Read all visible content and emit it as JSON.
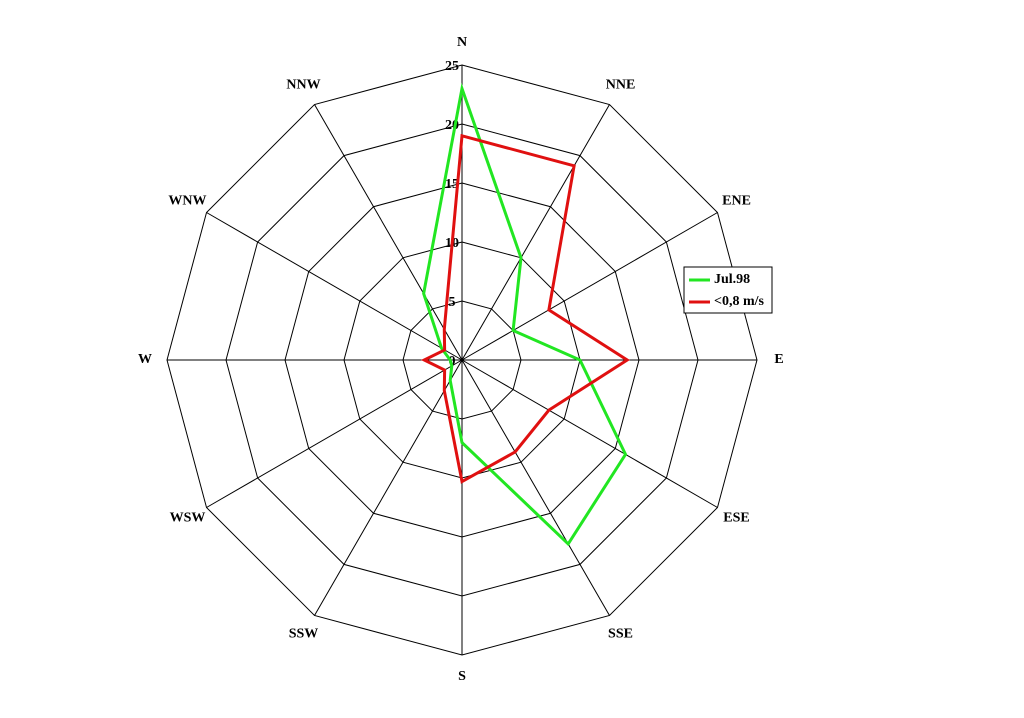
{
  "chart_data": {
    "type": "radar",
    "categories": [
      "N",
      "NNE",
      "ENE",
      "E",
      "ESE",
      "SSE",
      "S",
      "SSW",
      "WSW",
      "W",
      "WNW",
      "NNW"
    ],
    "series": [
      {
        "name": "Jul.98",
        "color": "#22e622",
        "values": [
          23,
          10,
          5,
          10,
          16,
          18,
          7,
          2,
          1,
          1,
          2,
          6.5
        ]
      },
      {
        "name": "<0,8 m/s",
        "color": "#e01010",
        "values": [
          19,
          19,
          8.5,
          14,
          8.5,
          9,
          10.3,
          3,
          1.7,
          3.2,
          1.7,
          3
        ]
      }
    ],
    "rlim": [
      0,
      25
    ],
    "rticks": [
      0,
      5,
      10,
      15,
      20,
      25
    ],
    "legend": "right"
  }
}
